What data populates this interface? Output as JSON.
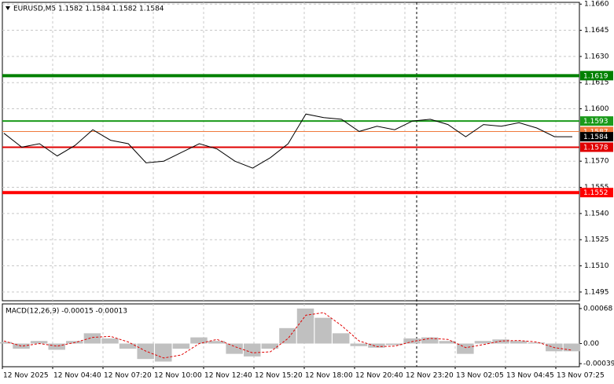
{
  "chart_data": {
    "type": "line",
    "title": "EURUSD,M5  1.1582 1.1584 1.1582 1.1584",
    "series": [
      {
        "name": "EURUSD",
        "color": "#000000",
        "values": [
          1.1586,
          1.1578,
          1.158,
          1.1573,
          1.1579,
          1.1588,
          1.1582,
          1.158,
          1.1569,
          1.157,
          1.1575,
          1.158,
          1.1577,
          1.157,
          1.1566,
          1.1572,
          1.158,
          1.1597,
          1.1595,
          1.1594,
          1.1587,
          1.159,
          1.1588,
          1.1593,
          1.1594,
          1.1591,
          1.1584,
          1.1591,
          1.159,
          1.1592,
          1.1589,
          1.1584,
          1.1584
        ]
      }
    ],
    "ylim": [
      1.149,
      1.1661
    ],
    "yticks": [
      {
        "value": 1.166,
        "label": "1.1660"
      },
      {
        "value": 1.1645,
        "label": "1.1645"
      },
      {
        "value": 1.163,
        "label": "1.1630"
      },
      {
        "value": 1.1615,
        "label": "1.1615"
      },
      {
        "value": 1.16,
        "label": "1.1600"
      },
      {
        "value": 1.157,
        "label": "1.1570"
      },
      {
        "value": 1.1555,
        "label": "1.1555"
      },
      {
        "value": 1.154,
        "label": "1.1540"
      },
      {
        "value": 1.1525,
        "label": "1.1525"
      },
      {
        "value": 1.151,
        "label": "1.1510"
      },
      {
        "value": 1.1495,
        "label": "1.1495"
      }
    ],
    "grid": true,
    "levels": [
      {
        "value": 1.1587,
        "color": "#f07a3c"
      },
      {
        "value": 1.1619,
        "color": "#008000"
      },
      {
        "value": 1.1593,
        "color": "#1a9a1a"
      },
      {
        "value": 1.1578,
        "color": "#e00000"
      },
      {
        "value": 1.1552,
        "color": "#ff0000"
      }
    ],
    "last_price": 1.1584,
    "x_tick_labels": [
      "12 Nov 2025",
      "12 Nov 04:40",
      "12 Nov 07:20",
      "12 Nov 10:00",
      "12 Nov 12:40",
      "12 Nov 15:20",
      "12 Nov 18:00",
      "12 Nov 20:40",
      "12 Nov 23:20",
      "13 Nov 02:05",
      "13 Nov 04:45",
      "13 Nov 07:25"
    ],
    "macd": {
      "title": "MACD(12,26,9) -0.00015 -0.00013",
      "histogram": {
        "color": "#c0c0c0",
        "values": [
          3e-05,
          -0.0001,
          5e-05,
          -0.00012,
          5e-05,
          0.0002,
          0.0001,
          -0.0001,
          -0.0003,
          -0.00035,
          -0.0001,
          0.00012,
          5e-05,
          -0.0002,
          -0.00025,
          -0.0001,
          0.0003,
          0.00068,
          0.0005,
          0.0002,
          -5e-05,
          -8e-05,
          -3e-05,
          0.0001,
          0.00012,
          5e-05,
          -0.0002,
          5e-05,
          8e-05,
          5e-05,
          2e-05,
          -0.00015,
          -0.00015
        ]
      },
      "signal": {
        "color": "#e00000",
        "values": [
          5e-05,
          -5e-05,
          0,
          -5e-05,
          2e-05,
          0.00012,
          0.00014,
          3e-05,
          -0.00015,
          -0.00028,
          -0.00022,
          0,
          8e-05,
          -6e-05,
          -0.00018,
          -0.00016,
          0.0001,
          0.00055,
          0.0006,
          0.00035,
          5e-05,
          -6e-05,
          -5e-05,
          4e-05,
          0.0001,
          8e-05,
          -8e-05,
          -2e-05,
          5e-05,
          6e-05,
          3e-05,
          -8e-05,
          -0.00013
        ]
      },
      "ylim": [
        -0.00045,
        0.00077
      ],
      "yticks": [
        0.00068,
        {
          "value": 0,
          "label": "0.00"
        },
        -0.00039
      ]
    }
  }
}
